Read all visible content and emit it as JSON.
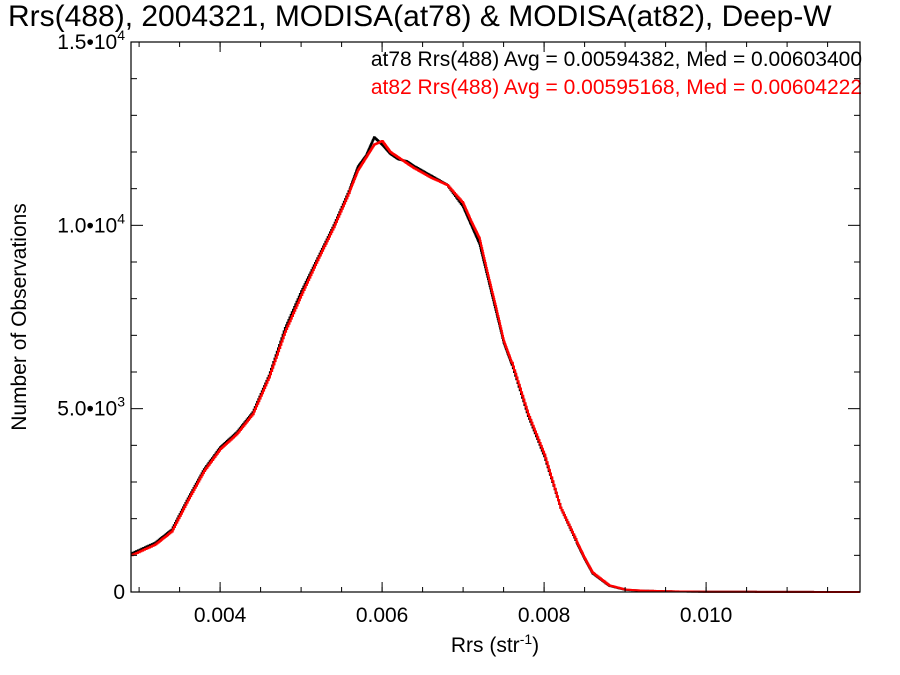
{
  "chart_data": {
    "type": "line",
    "title": "Rrs(488), 2004321, MODISA(at78) & MODISA(at82), Deep-W",
    "xlabel": "Rrs (str",
    "xlabel_sup": "-1",
    "xlabel_close": ")",
    "ylabel": "Number of Observations",
    "xlim": [
      0.0029,
      0.0119
    ],
    "ylim": [
      0,
      15000
    ],
    "x_ticks": [
      {
        "value": 0.004,
        "label": "0.004"
      },
      {
        "value": 0.006,
        "label": "0.006"
      },
      {
        "value": 0.008,
        "label": "0.008"
      },
      {
        "value": 0.01,
        "label": "0.010"
      }
    ],
    "y_ticks": [
      {
        "value": 0,
        "mant": "0",
        "exp": ""
      },
      {
        "value": 5000,
        "mant": "5.0•10",
        "exp": "3"
      },
      {
        "value": 10000,
        "mant": "1.0•10",
        "exp": "4"
      },
      {
        "value": 15000,
        "mant": "1.5•10",
        "exp": "4"
      }
    ],
    "grid": false,
    "legend_placement": "top-right",
    "series": [
      {
        "name": "at78",
        "legend": "at78 Rrs(488) Avg = 0.00594382, Med = 0.00603400",
        "color": "#000000",
        "x": [
          0.0029,
          0.0032,
          0.0034,
          0.0036,
          0.0038,
          0.004,
          0.0042,
          0.0044,
          0.0046,
          0.0048,
          0.005,
          0.0052,
          0.0054,
          0.0056,
          0.0057,
          0.0058,
          0.0059,
          0.006,
          0.0061,
          0.0062,
          0.0063,
          0.0064,
          0.0066,
          0.0068,
          0.007,
          0.0071,
          0.0072,
          0.0073,
          0.0074,
          0.0075,
          0.0076,
          0.0078,
          0.008,
          0.0082,
          0.0084,
          0.0085,
          0.0086,
          0.0088,
          0.009,
          0.0092,
          0.0096,
          0.01,
          0.0104,
          0.011,
          0.0119
        ],
        "y": [
          1050,
          1350,
          1700,
          2550,
          3350,
          3950,
          4350,
          4900,
          5900,
          7200,
          8200,
          9100,
          10000,
          11000,
          11600,
          11900,
          12400,
          12200,
          11950,
          11800,
          11750,
          11600,
          11350,
          11100,
          10500,
          10000,
          9500,
          8600,
          7700,
          6800,
          6200,
          4800,
          3700,
          2300,
          1350,
          900,
          500,
          170,
          60,
          35,
          15,
          8,
          5,
          2,
          0
        ]
      },
      {
        "name": "at82",
        "legend": "at82 Rrs(488) Avg = 0.00595168, Med = 0.00604222",
        "color": "#ff0000",
        "x": [
          0.0029,
          0.0032,
          0.0034,
          0.0036,
          0.0038,
          0.004,
          0.0042,
          0.0044,
          0.0046,
          0.0048,
          0.005,
          0.0052,
          0.0054,
          0.0056,
          0.0057,
          0.0058,
          0.0059,
          0.006,
          0.0061,
          0.0062,
          0.0063,
          0.0064,
          0.0066,
          0.0068,
          0.007,
          0.0071,
          0.0072,
          0.0073,
          0.0074,
          0.0075,
          0.0076,
          0.0078,
          0.008,
          0.0082,
          0.0084,
          0.0085,
          0.0086,
          0.0088,
          0.009,
          0.0092,
          0.0096,
          0.01,
          0.0104,
          0.011,
          0.0119
        ],
        "y": [
          1000,
          1300,
          1650,
          2500,
          3300,
          3900,
          4300,
          4850,
          5850,
          7100,
          8100,
          9050,
          9950,
          10950,
          11500,
          11850,
          12200,
          12300,
          12000,
          11850,
          11700,
          11550,
          11300,
          11100,
          10600,
          10100,
          9650,
          8700,
          7800,
          6850,
          6250,
          4850,
          3750,
          2300,
          1380,
          920,
          520,
          180,
          65,
          38,
          16,
          9,
          5,
          2,
          0
        ]
      }
    ]
  }
}
